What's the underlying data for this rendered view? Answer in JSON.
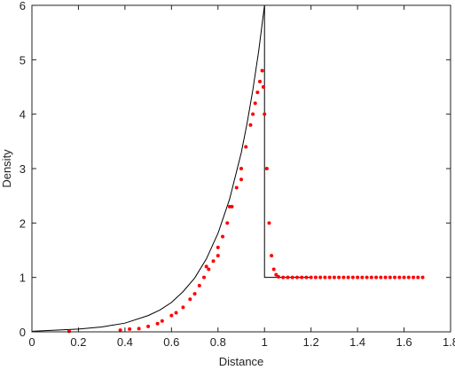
{
  "chart_data": {
    "type": "scatter",
    "xlabel": "Distance",
    "ylabel": "Density",
    "xlim": [
      0,
      1.8
    ],
    "xticks": [
      0,
      0.2,
      0.4,
      0.6,
      0.8,
      1,
      1.2,
      1.4,
      1.6,
      1.8
    ],
    "ylim": [
      0,
      6
    ],
    "yticks": [
      0,
      1,
      2,
      3,
      4,
      5,
      6
    ],
    "grid": false,
    "series": [
      {
        "type": "line",
        "color": "#000000",
        "x": [
          0,
          0.1,
          0.2,
          0.3,
          0.4,
          0.5,
          0.55,
          0.6,
          0.65,
          0.7,
          0.75,
          0.8,
          0.85,
          0.9,
          0.925,
          0.95,
          0.975,
          1,
          1,
          1.2
        ],
        "values": [
          0.01,
          0.03,
          0.05,
          0.09,
          0.16,
          0.3,
          0.4,
          0.54,
          0.74,
          0.99,
          1.34,
          1.81,
          2.44,
          3.29,
          3.83,
          4.45,
          5.16,
          6,
          1,
          1
        ]
      },
      {
        "type": "scatter",
        "color": "#ff0000",
        "x": [
          0.16,
          0.38,
          0.42,
          0.46,
          0.5,
          0.54,
          0.56,
          0.6,
          0.62,
          0.65,
          0.68,
          0.7,
          0.72,
          0.74,
          0.75,
          0.76,
          0.78,
          0.8,
          0.8,
          0.82,
          0.84,
          0.85,
          0.86,
          0.88,
          0.9,
          0.9,
          0.92,
          0.94,
          0.95,
          0.96,
          0.97,
          0.98,
          0.99,
          0.995,
          1,
          1.01,
          1.02,
          1.03,
          1.04,
          1.05,
          1.06,
          1.08,
          1.1,
          1.12,
          1.14,
          1.16,
          1.18,
          1.2,
          1.22,
          1.24,
          1.26,
          1.28,
          1.3,
          1.32,
          1.34,
          1.36,
          1.38,
          1.4,
          1.42,
          1.44,
          1.46,
          1.48,
          1.5,
          1.52,
          1.54,
          1.56,
          1.58,
          1.6,
          1.62,
          1.64,
          1.66,
          1.68
        ],
        "values": [
          0.01,
          0.03,
          0.05,
          0.06,
          0.1,
          0.15,
          0.2,
          0.3,
          0.35,
          0.45,
          0.6,
          0.7,
          0.85,
          1,
          1.2,
          1.15,
          1.3,
          1.55,
          1.4,
          1.75,
          2,
          2.3,
          2.3,
          2.65,
          3,
          2.8,
          3.4,
          3.8,
          4,
          4.2,
          4.4,
          4.6,
          4.8,
          4.5,
          4,
          3,
          2,
          1.4,
          1.15,
          1.05,
          1.01,
          1,
          1,
          1,
          1,
          1,
          1,
          1,
          1,
          1,
          1,
          1,
          1,
          1,
          1,
          1,
          1,
          1,
          1,
          1,
          1,
          1,
          1,
          1,
          1,
          1,
          1,
          1,
          1,
          1,
          1,
          1
        ]
      }
    ]
  }
}
